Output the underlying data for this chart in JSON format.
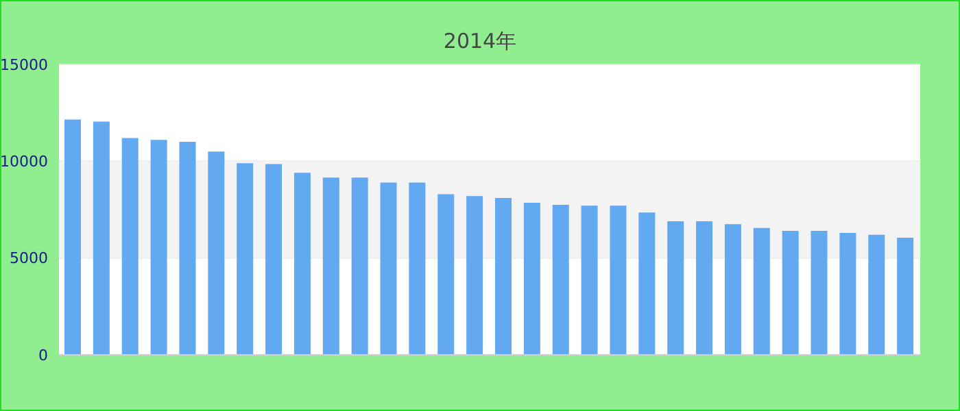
{
  "chart_data": {
    "type": "bar",
    "subtitle": "2014年",
    "categories": [
      null,
      null,
      null,
      null,
      null,
      null,
      null,
      null,
      null,
      null,
      null,
      null,
      null,
      null,
      null,
      null,
      null,
      null,
      null,
      null,
      null,
      null,
      null,
      null,
      null,
      null,
      null,
      null,
      null,
      null
    ],
    "values": [
      12150,
      12050,
      11200,
      11100,
      11000,
      10500,
      9900,
      9850,
      9400,
      9150,
      9150,
      8900,
      8900,
      8300,
      8200,
      8100,
      7850,
      7750,
      7700,
      7700,
      7350,
      6900,
      6900,
      6750,
      6550,
      6400,
      6400,
      6300,
      6200,
      6050
    ],
    "color": "#62a9f2",
    "bands": [
      {
        "axis": "y",
        "from": 5000,
        "to": 10000,
        "color": "#f3f3f3"
      }
    ],
    "ylim": [
      0,
      15000
    ],
    "yticks": [
      0,
      5000,
      10000,
      15000
    ],
    "grid": true
  }
}
